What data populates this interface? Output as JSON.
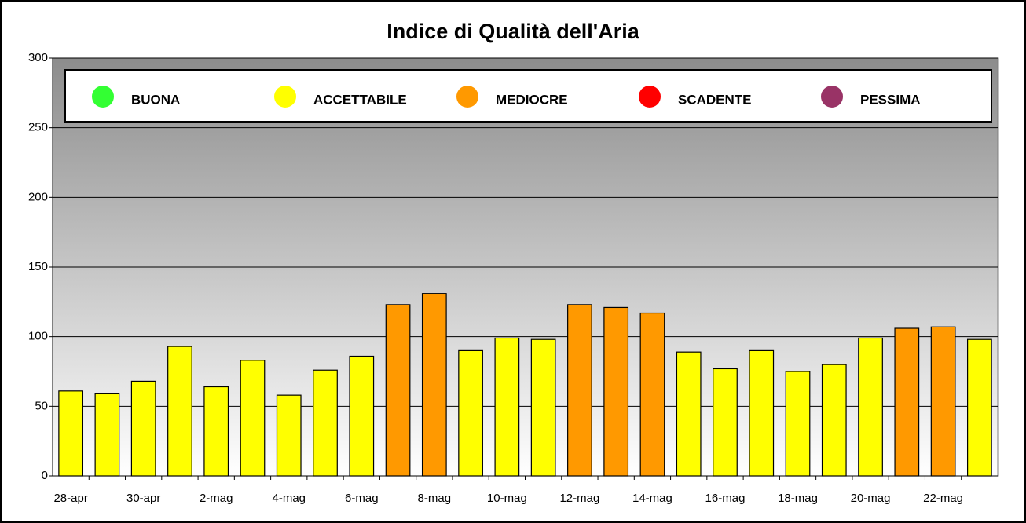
{
  "chart_data": {
    "type": "bar",
    "title": "Indice di Qualità dell'Aria",
    "categories": [
      "28-apr",
      null,
      "30-apr",
      null,
      "2-mag",
      null,
      "4-mag",
      null,
      "6-mag",
      null,
      "8-mag",
      null,
      "10-mag",
      null,
      "12-mag",
      null,
      "14-mag",
      null,
      "16-mag",
      null,
      "18-mag",
      null,
      "20-mag",
      null,
      "22-mag",
      null
    ],
    "values": [
      61,
      59,
      68,
      93,
      64,
      83,
      58,
      76,
      86,
      123,
      131,
      90,
      99,
      98,
      123,
      121,
      117,
      89,
      77,
      90,
      75,
      80,
      99,
      106,
      107,
      98
    ],
    "colors": [
      "#ffff00",
      "#ffff00",
      "#ffff00",
      "#ffff00",
      "#ffff00",
      "#ffff00",
      "#ffff00",
      "#ffff00",
      "#ffff00",
      "#ff9900",
      "#ff9900",
      "#ffff00",
      "#ffff00",
      "#ffff00",
      "#ff9900",
      "#ff9900",
      "#ff9900",
      "#ffff00",
      "#ffff00",
      "#ffff00",
      "#ffff00",
      "#ffff00",
      "#ffff00",
      "#ff9900",
      "#ff9900",
      "#ffff00"
    ],
    "legend": [
      {
        "name": "BUONA",
        "color": "#33ff33"
      },
      {
        "name": "ACCETTABILE",
        "color": "#ffff00"
      },
      {
        "name": "MEDIOCRE",
        "color": "#ff9900"
      },
      {
        "name": "SCADENTE",
        "color": "#ff0000"
      },
      {
        "name": "PESSIMA",
        "color": "#993366"
      }
    ],
    "ylim": [
      0,
      300
    ],
    "yticks": [
      0,
      50,
      100,
      150,
      200,
      250,
      300
    ],
    "grid": true
  }
}
